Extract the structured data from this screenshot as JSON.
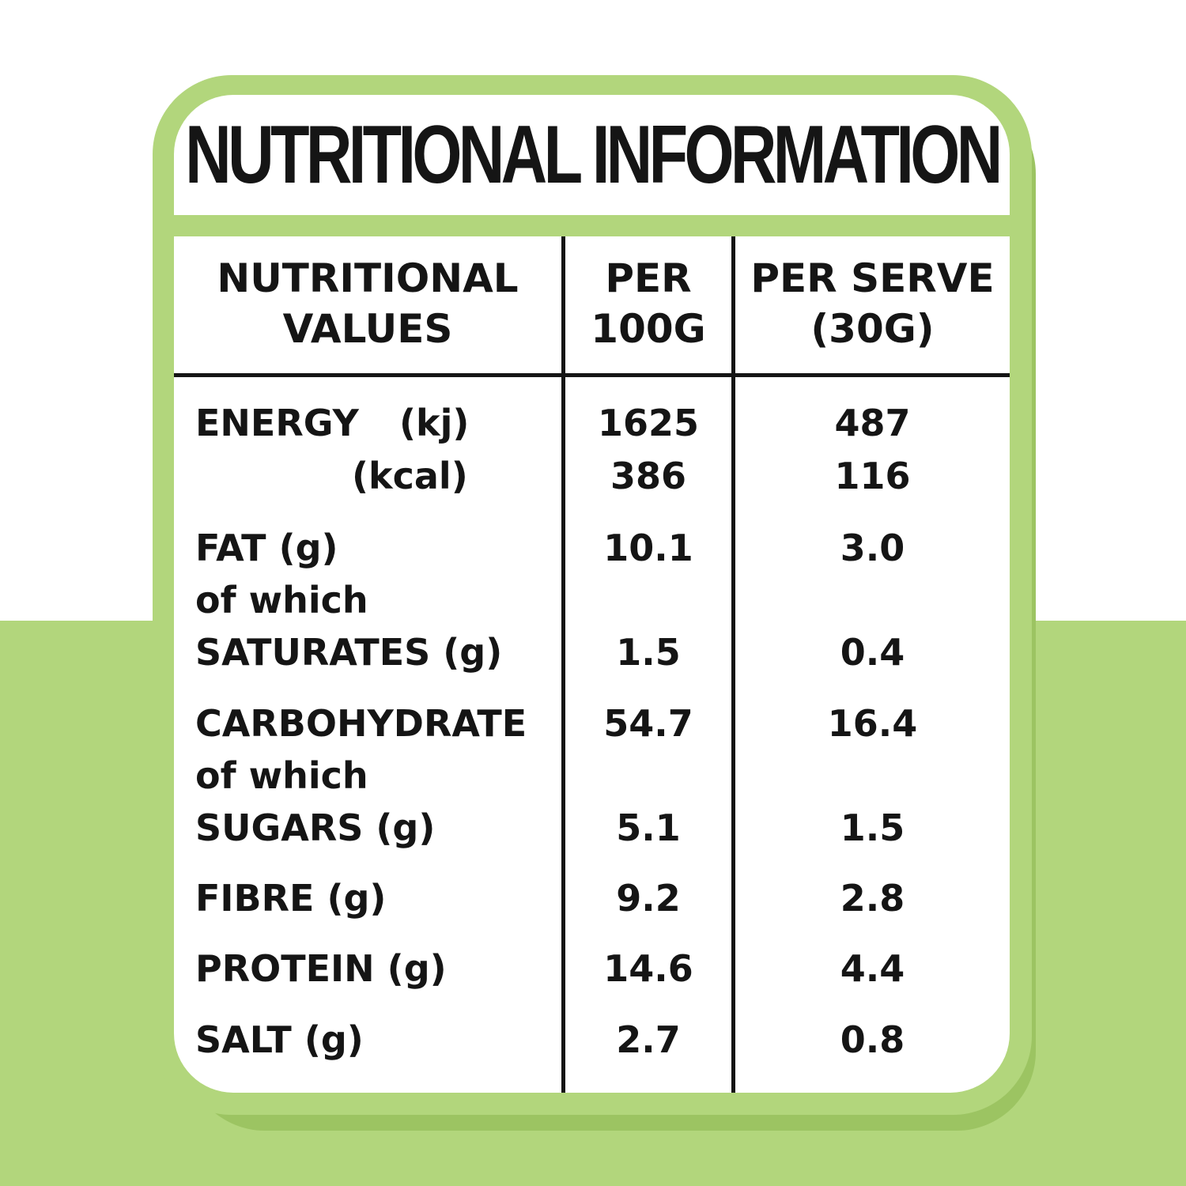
{
  "title": "NUTRITIONAL INFORMATION",
  "headers": {
    "col0": [
      "NUTRITIONAL",
      "VALUES"
    ],
    "col1": [
      "PER",
      "100G"
    ],
    "col2": [
      "PER SERVE",
      "(30G)"
    ]
  },
  "rows": {
    "energy_kj": {
      "label": "ENERGY",
      "unit": "(kj)",
      "per100": "1625",
      "serve": "487"
    },
    "energy_kcal": {
      "unit": "(kcal)",
      "per100": "386",
      "serve": "116"
    },
    "fat": {
      "label": "FAT (g)",
      "per100": "10.1",
      "serve": "3.0"
    },
    "fat_of_which": {
      "label": "of which"
    },
    "saturates": {
      "label": "SATURATES (g)",
      "per100": "1.5",
      "serve": "0.4"
    },
    "carbohydrate": {
      "label": "CARBOHYDRATE",
      "per100": "54.7",
      "serve": "16.4"
    },
    "carb_of_which": {
      "label": "of which"
    },
    "sugars": {
      "label": "SUGARS (g)",
      "per100": "5.1",
      "serve": "1.5"
    },
    "fibre": {
      "label": "FIBRE (g)",
      "per100": "9.2",
      "serve": "2.8"
    },
    "protein": {
      "label": "PROTEIN (g)",
      "per100": "14.6",
      "serve": "4.4"
    },
    "salt": {
      "label": "SALT (g)",
      "per100": "2.7",
      "serve": "0.8"
    }
  },
  "colors": {
    "green": "#b2d67c",
    "dark_green": "#9cc462",
    "text": "#151515"
  }
}
